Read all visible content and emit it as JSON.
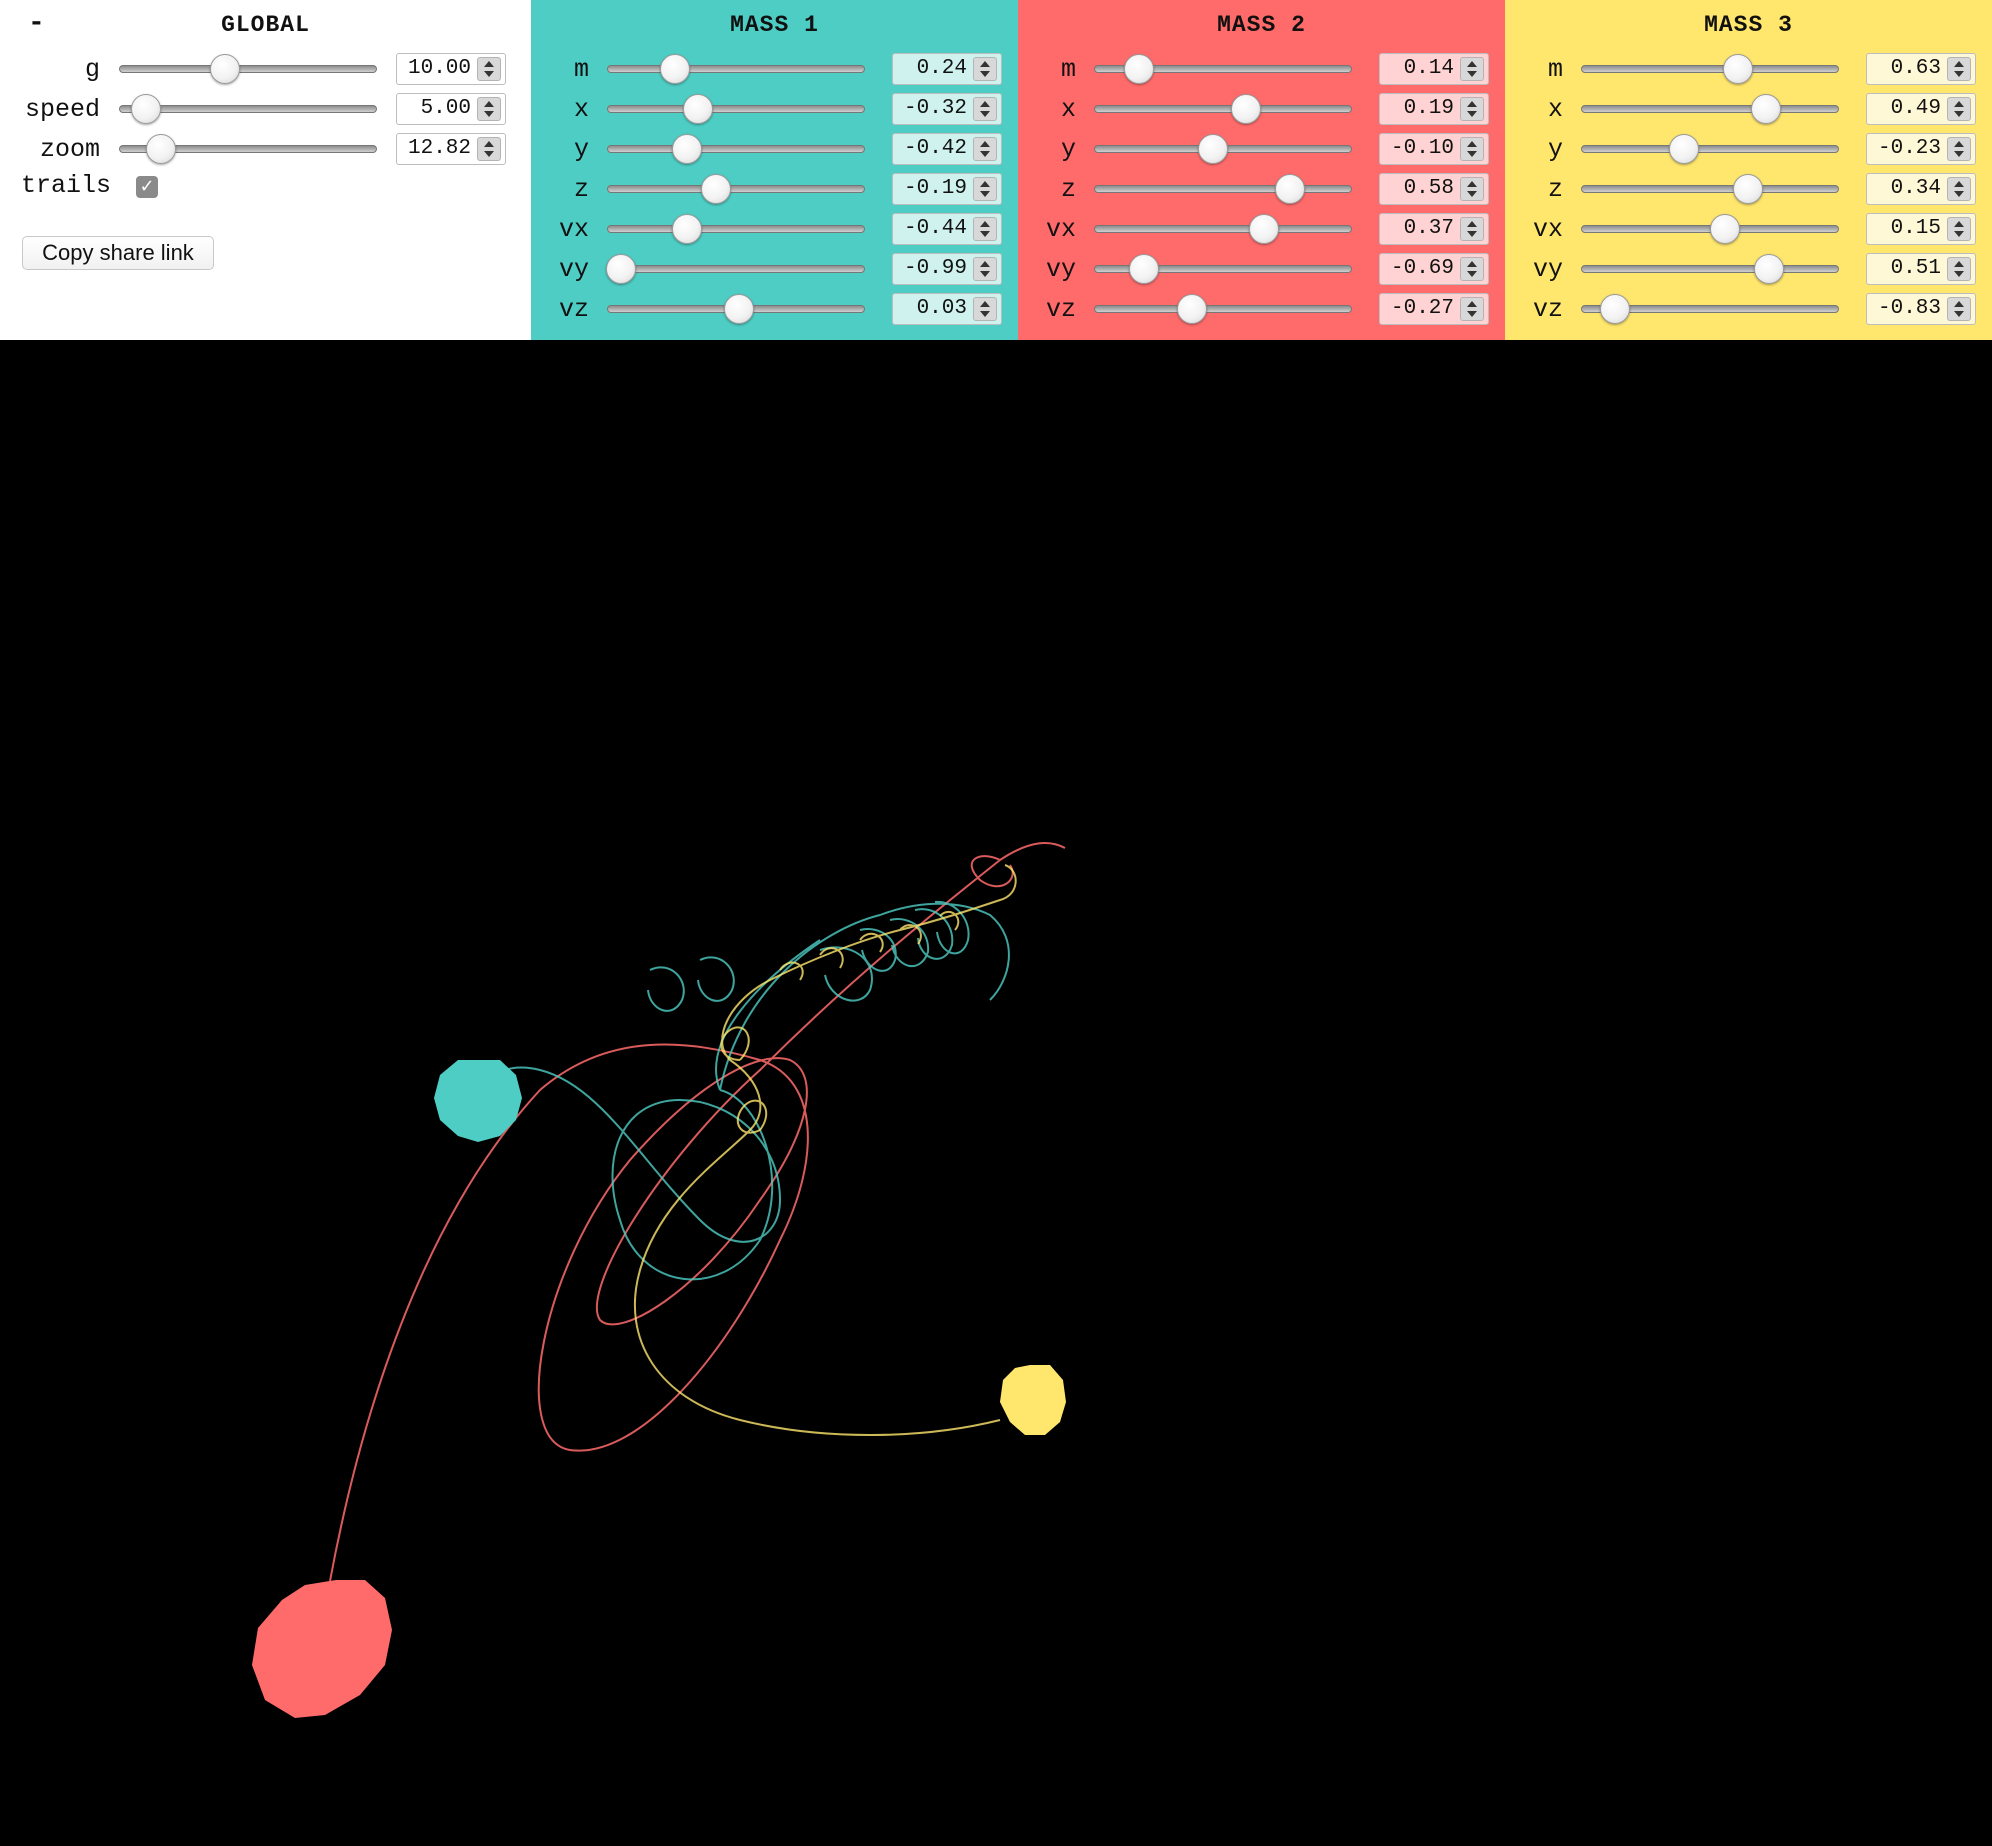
{
  "global": {
    "collapse_label": "-",
    "title": "GLOBAL",
    "params": [
      {
        "key": "g",
        "label": "g",
        "value": "10.00",
        "fraction": 0.41
      },
      {
        "key": "speed",
        "label": "speed",
        "value": "5.00",
        "fraction": 0.1
      },
      {
        "key": "zoom",
        "label": "zoom",
        "value": "12.82",
        "fraction": 0.16
      }
    ],
    "trails_label": "trails",
    "trails_checked": true,
    "share_label": "Copy share link"
  },
  "masses": [
    {
      "title": "MASS 1",
      "color": "#4ECDC4",
      "field_color": "#CFF2EF",
      "params": [
        {
          "key": "m",
          "label": "m",
          "value": "0.24",
          "fraction": 0.26
        },
        {
          "key": "x",
          "label": "x",
          "value": "-0.32",
          "fraction": 0.35
        },
        {
          "key": "y",
          "label": "y",
          "value": "-0.42",
          "fraction": 0.31
        },
        {
          "key": "z",
          "label": "z",
          "value": "-0.19",
          "fraction": 0.42
        },
        {
          "key": "vx",
          "label": "vx",
          "value": "-0.44",
          "fraction": 0.31
        },
        {
          "key": "vy",
          "label": "vy",
          "value": "-0.99",
          "fraction": 0.05
        },
        {
          "key": "vz",
          "label": "vz",
          "value": "0.03",
          "fraction": 0.51
        }
      ]
    },
    {
      "title": "MASS 2",
      "color": "#FF6B6B",
      "field_color": "#FFD3D3",
      "params": [
        {
          "key": "m",
          "label": "m",
          "value": "0.14",
          "fraction": 0.17
        },
        {
          "key": "x",
          "label": "x",
          "value": "0.19",
          "fraction": 0.59
        },
        {
          "key": "y",
          "label": "y",
          "value": "-0.10",
          "fraction": 0.46
        },
        {
          "key": "z",
          "label": "z",
          "value": "0.58",
          "fraction": 0.76
        },
        {
          "key": "vx",
          "label": "vx",
          "value": "0.37",
          "fraction": 0.66
        },
        {
          "key": "vy",
          "label": "vy",
          "value": "-0.69",
          "fraction": 0.19
        },
        {
          "key": "vz",
          "label": "vz",
          "value": "-0.27",
          "fraction": 0.38
        }
      ]
    },
    {
      "title": "MASS 3",
      "color": "#FFE66D",
      "field_color": "#FFF8D6",
      "params": [
        {
          "key": "m",
          "label": "m",
          "value": "0.63",
          "fraction": 0.61
        },
        {
          "key": "x",
          "label": "x",
          "value": "0.49",
          "fraction": 0.72
        },
        {
          "key": "y",
          "label": "y",
          "value": "-0.23",
          "fraction": 0.4
        },
        {
          "key": "z",
          "label": "z",
          "value": "0.34",
          "fraction": 0.65
        },
        {
          "key": "vx",
          "label": "vx",
          "value": "0.15",
          "fraction": 0.56
        },
        {
          "key": "vy",
          "label": "vy",
          "value": "0.51",
          "fraction": 0.73
        },
        {
          "key": "vz",
          "label": "vz",
          "value": "-0.83",
          "fraction": 0.13
        }
      ]
    }
  ],
  "simulation": {
    "background": "#000000"
  }
}
